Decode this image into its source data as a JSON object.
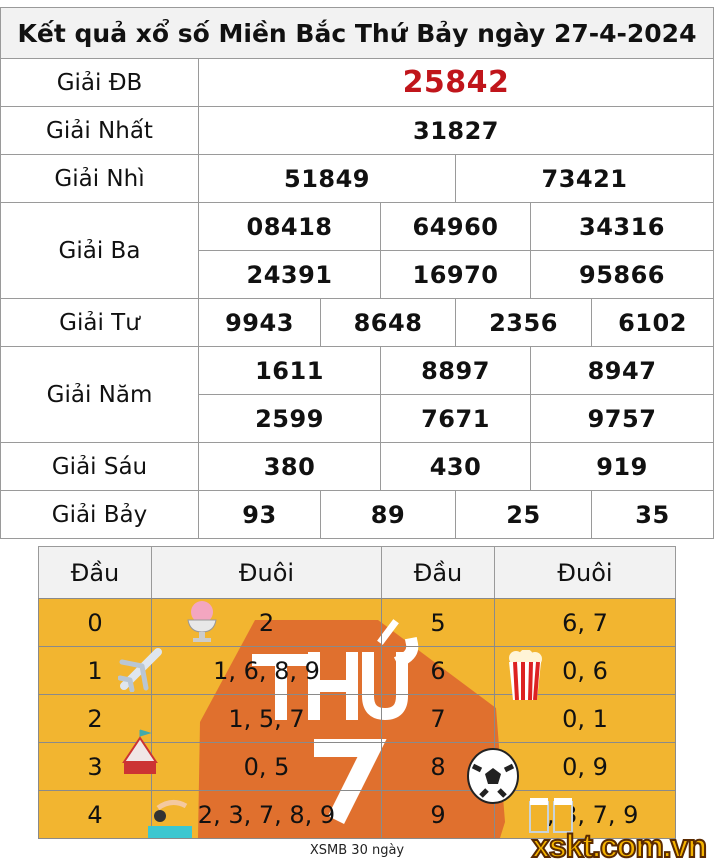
{
  "title": "Kết quả xổ số Miền Bắc Thứ Bảy ngày 27-4-2024",
  "prizes": [
    {
      "label": "Giải ĐB",
      "rows": [
        [
          "25842"
        ]
      ]
    },
    {
      "label": "Giải Nhất",
      "rows": [
        [
          "31827"
        ]
      ]
    },
    {
      "label": "Giải Nhì",
      "rows": [
        [
          "51849",
          "73421"
        ]
      ]
    },
    {
      "label": "Giải Ba",
      "rows": [
        [
          "08418",
          "64960",
          "34316"
        ],
        [
          "24391",
          "16970",
          "95866"
        ]
      ]
    },
    {
      "label": "Giải Tư",
      "rows": [
        [
          "9943",
          "8648",
          "2356",
          "6102"
        ]
      ]
    },
    {
      "label": "Giải Năm",
      "rows": [
        [
          "1611",
          "8897",
          "8947"
        ],
        [
          "2599",
          "7671",
          "9757"
        ]
      ]
    },
    {
      "label": "Giải Sáu",
      "rows": [
        [
          "380",
          "430",
          "919"
        ]
      ]
    },
    {
      "label": "Giải Bảy",
      "rows": [
        [
          "93",
          "89",
          "25",
          "35"
        ]
      ]
    }
  ],
  "loto": {
    "headers": [
      "Đầu",
      "Đuôi",
      "Đầu",
      "Đuôi"
    ],
    "rows": [
      [
        "0",
        "2",
        "5",
        "6, 7"
      ],
      [
        "1",
        "1, 6, 8, 9",
        "6",
        "0, 6"
      ],
      [
        "2",
        "1, 5, 7",
        "7",
        "0, 1"
      ],
      [
        "3",
        "0, 5",
        "8",
        "0, 9"
      ],
      [
        "4",
        "2, 3, 7, 8, 9",
        "9",
        "1, 3, 7, 9"
      ]
    ],
    "badge_line1": "THỨ",
    "badge_line2": "7"
  },
  "caption": "XSMB 30 ngày",
  "watermark": "xskt.com.vn",
  "colors": {
    "special": "#c0151b",
    "loto_bg": "#f2b530",
    "badge": "#e0702e"
  }
}
